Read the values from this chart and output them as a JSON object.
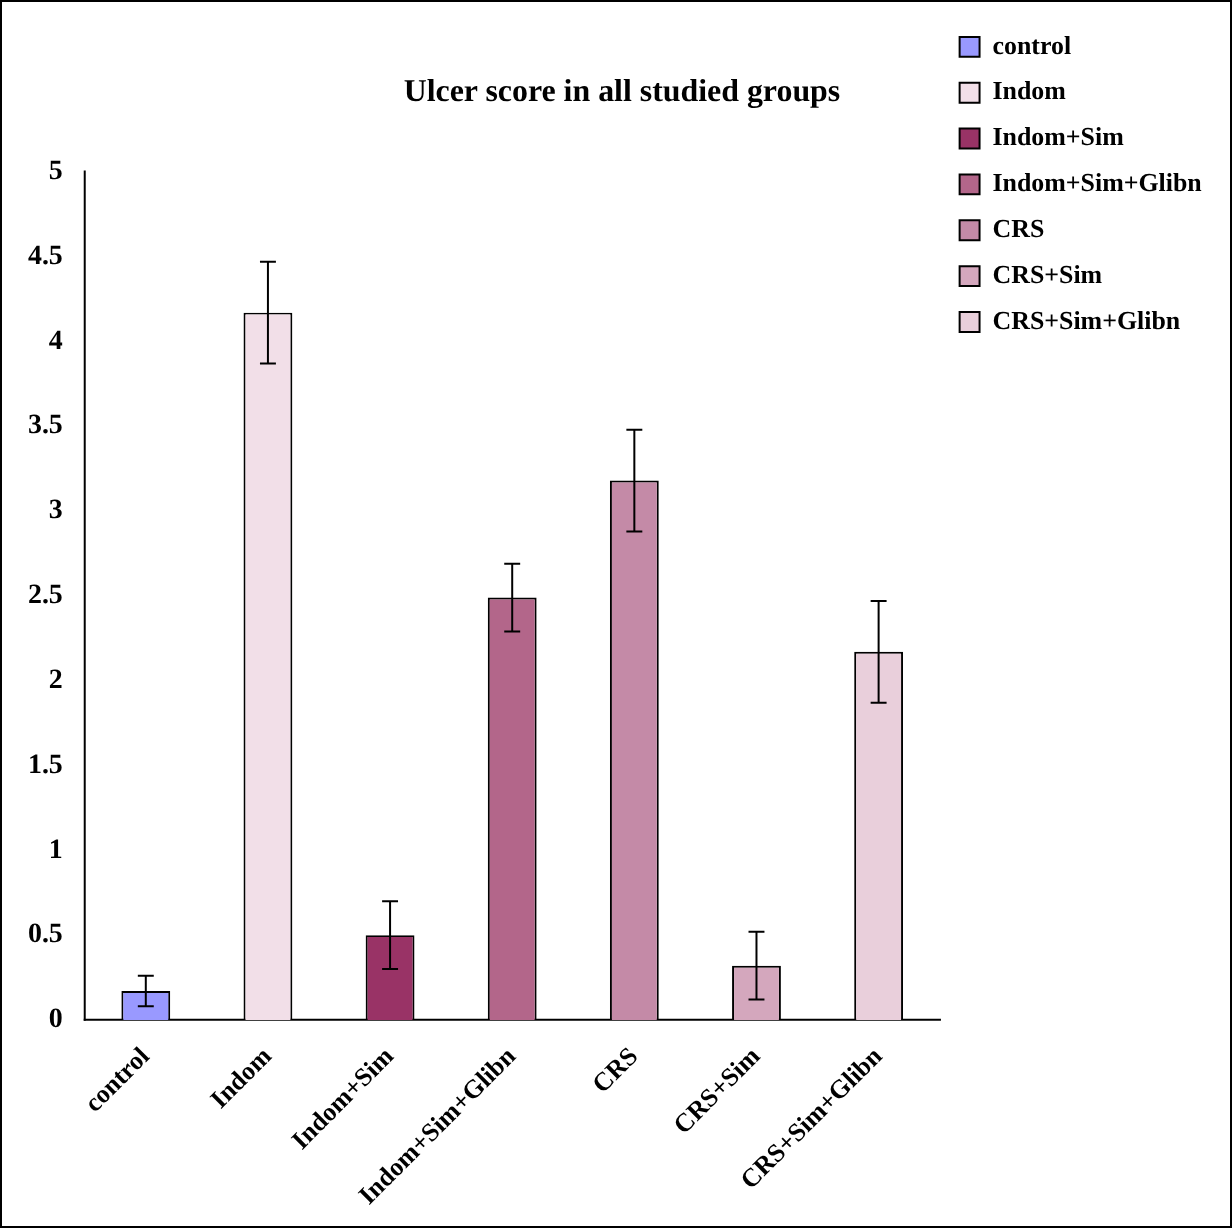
{
  "chart_data": {
    "type": "bar",
    "title": "Ulcer score in all studied groups",
    "categories": [
      "control",
      "Indom",
      "Indom+Sim",
      "Indom+Sim+Glibn",
      "CRS",
      "CRS+Sim",
      "CRS+Sim+Glibn"
    ],
    "series": [
      {
        "name": "control",
        "color": "#9999ff",
        "values": [
          0.17,
          null,
          null,
          null,
          null,
          null,
          null
        ],
        "errors": [
          0.09,
          null,
          null,
          null,
          null,
          null,
          null
        ]
      },
      {
        "name": "Indom",
        "color": "#f2dfe8",
        "values": [
          null,
          4.17,
          null,
          null,
          null,
          null,
          null
        ],
        "errors": [
          null,
          0.3,
          null,
          null,
          null,
          null,
          null
        ]
      },
      {
        "name": "Indom+Sim",
        "color": "#993366",
        "values": [
          null,
          null,
          0.5,
          null,
          null,
          null,
          null
        ],
        "errors": [
          null,
          null,
          0.2,
          null,
          null,
          null,
          null
        ]
      },
      {
        "name": "Indom+Sim+Glibn",
        "color": "#b3668a",
        "values": [
          null,
          null,
          null,
          2.49,
          null,
          null,
          null
        ],
        "errors": [
          null,
          null,
          null,
          0.2,
          null,
          null,
          null
        ]
      },
      {
        "name": "CRS",
        "color": "#c48aa7",
        "values": [
          null,
          null,
          null,
          null,
          3.18,
          null,
          null
        ],
        "errors": [
          null,
          null,
          null,
          null,
          0.3,
          null,
          null
        ]
      },
      {
        "name": "CRS+Sim",
        "color": "#d4a7bd",
        "values": [
          null,
          null,
          null,
          null,
          null,
          0.32,
          null
        ],
        "errors": [
          null,
          null,
          null,
          null,
          null,
          0.2,
          null
        ]
      },
      {
        "name": "CRS+Sim+Glibn",
        "color": "#e9cfdb",
        "values": [
          null,
          null,
          null,
          null,
          null,
          null,
          2.17
        ],
        "errors": [
          null,
          null,
          null,
          null,
          null,
          null,
          0.3
        ]
      }
    ],
    "ylim": [
      0,
      5
    ],
    "yticks": [
      0,
      0.5,
      1,
      1.5,
      2,
      2.5,
      3,
      3.5,
      4,
      4.5,
      5
    ],
    "grid": false,
    "legend": "top right"
  }
}
